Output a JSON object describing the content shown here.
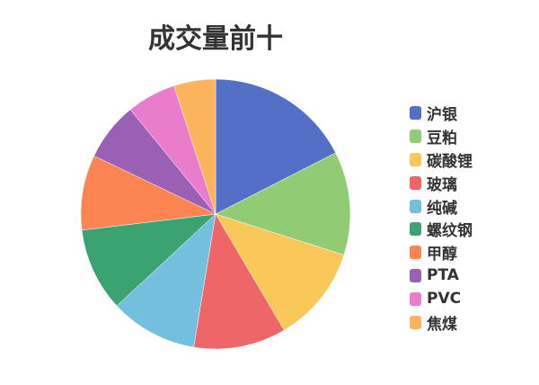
{
  "chart_data": {
    "type": "pie",
    "title": "成交量前十",
    "legend_position": "right",
    "categories": [
      "沪银",
      "豆粕",
      "碳酸锂",
      "玻璃",
      "纯碱",
      "螺纹钢",
      "甲醇",
      "PTA",
      "PVC",
      "焦煤"
    ],
    "values": [
      17.5,
      12.4,
      11.6,
      11.1,
      10.5,
      10.0,
      9.0,
      7.0,
      5.9,
      5.0
    ],
    "colors": [
      "#5470c6",
      "#91cc75",
      "#fac858",
      "#ee6666",
      "#73c0de",
      "#3ba272",
      "#fc8452",
      "#9a60b4",
      "#ea7ccc",
      "#fbb45c"
    ]
  }
}
